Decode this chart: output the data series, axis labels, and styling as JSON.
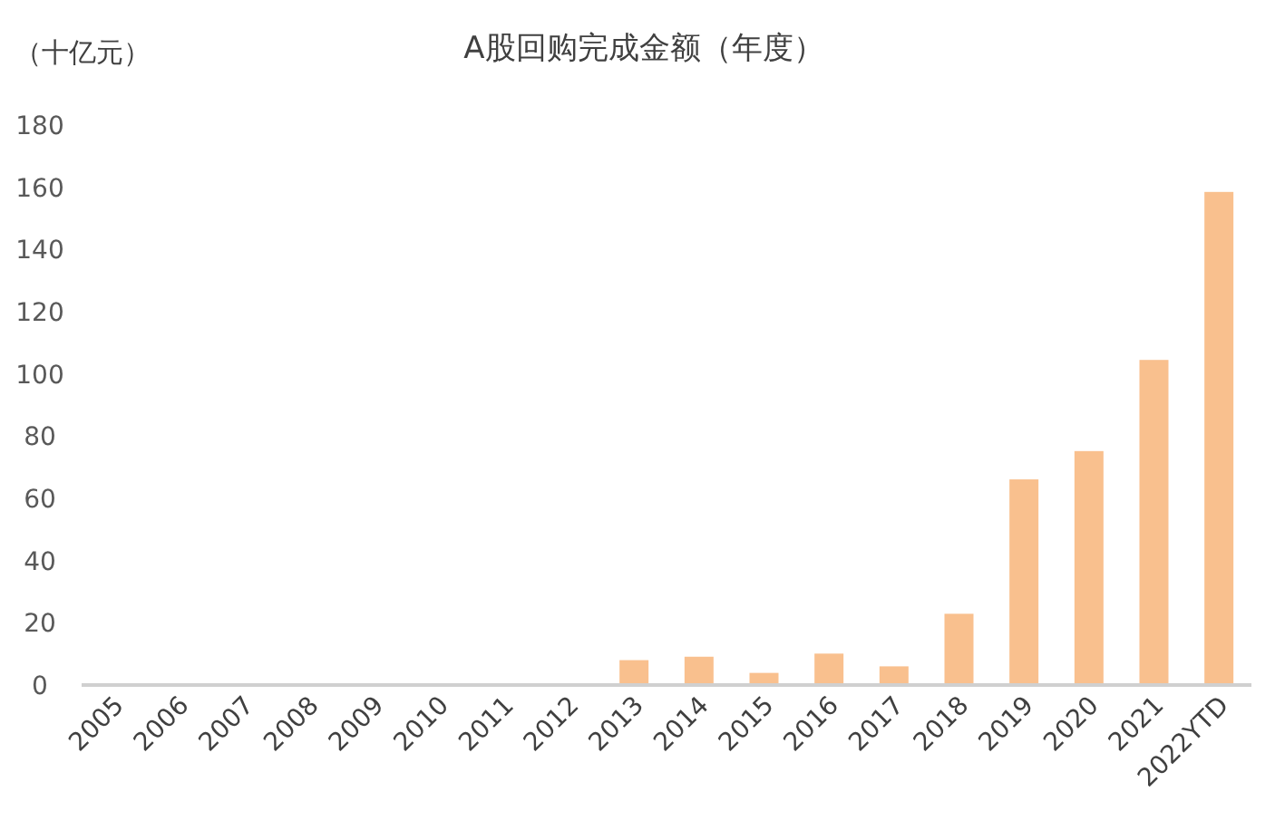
{
  "chart_data": {
    "type": "bar",
    "title": "A股回购完成金额（年度）",
    "ylabel": "（十亿元）",
    "categories": [
      "2005",
      "2006",
      "2007",
      "2008",
      "2009",
      "2010",
      "2011",
      "2012",
      "2013",
      "2014",
      "2015",
      "2016",
      "2017",
      "2018",
      "2019",
      "2020",
      "2021",
      "2022YTD"
    ],
    "values": [
      0,
      0,
      0,
      0,
      0,
      0,
      0,
      0,
      8.0,
      9.1,
      3.9,
      10.1,
      6.0,
      22.9,
      66.1,
      75.2,
      104.5,
      158.5
    ],
    "color": "#f9c08e",
    "ylim": [
      0,
      180
    ],
    "yticks": [
      0,
      20,
      40,
      60,
      80,
      100,
      120,
      140,
      160,
      180
    ],
    "grid": false
  }
}
